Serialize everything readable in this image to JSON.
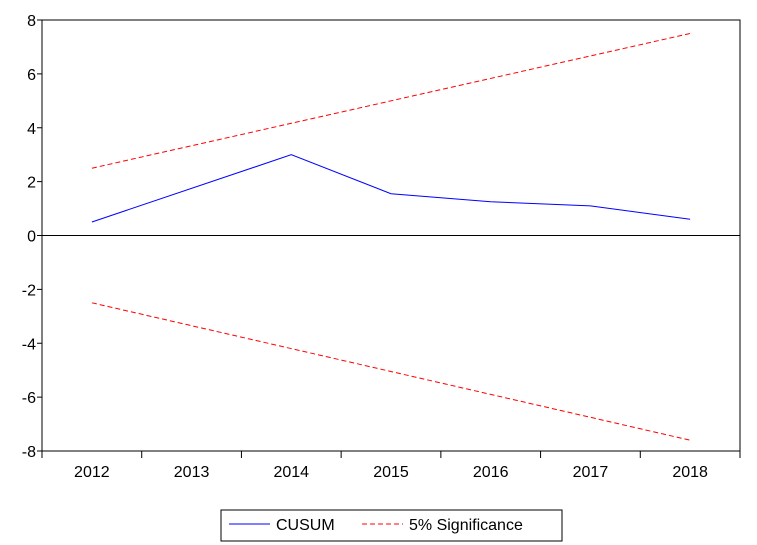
{
  "chart_data": {
    "type": "line",
    "categories": [
      "2012",
      "2013",
      "2014",
      "2015",
      "2016",
      "2017",
      "2018"
    ],
    "ylim": [
      -8,
      8
    ],
    "yticks": [
      8,
      6,
      4,
      2,
      0,
      -2,
      -4,
      -6,
      -8
    ],
    "grid": false,
    "zero_line": true,
    "legend_position": "bottom-center",
    "series": [
      {
        "name": "CUSUM",
        "color": "#0000ff",
        "style": "solid",
        "points": [
          [
            2012,
            0.5
          ],
          [
            2014,
            3.0
          ],
          [
            2015,
            1.55
          ],
          [
            2016,
            1.25
          ],
          [
            2017,
            1.1
          ],
          [
            2018,
            0.6
          ]
        ]
      },
      {
        "name": "5% Significance",
        "color": "#ff0000",
        "style": "dashed",
        "points": [
          [
            2012,
            2.5
          ],
          [
            2018,
            7.5
          ]
        ]
      },
      {
        "name": "5% Significance",
        "color": "#ff0000",
        "style": "dashed",
        "points": [
          [
            2012,
            -2.5
          ],
          [
            2018,
            -7.6
          ]
        ]
      }
    ]
  },
  "legend": [
    {
      "label": "CUSUM",
      "color": "#0000ff",
      "style": "solid"
    },
    {
      "label": "5% Significance",
      "color": "#ff0000",
      "style": "dashed"
    }
  ]
}
